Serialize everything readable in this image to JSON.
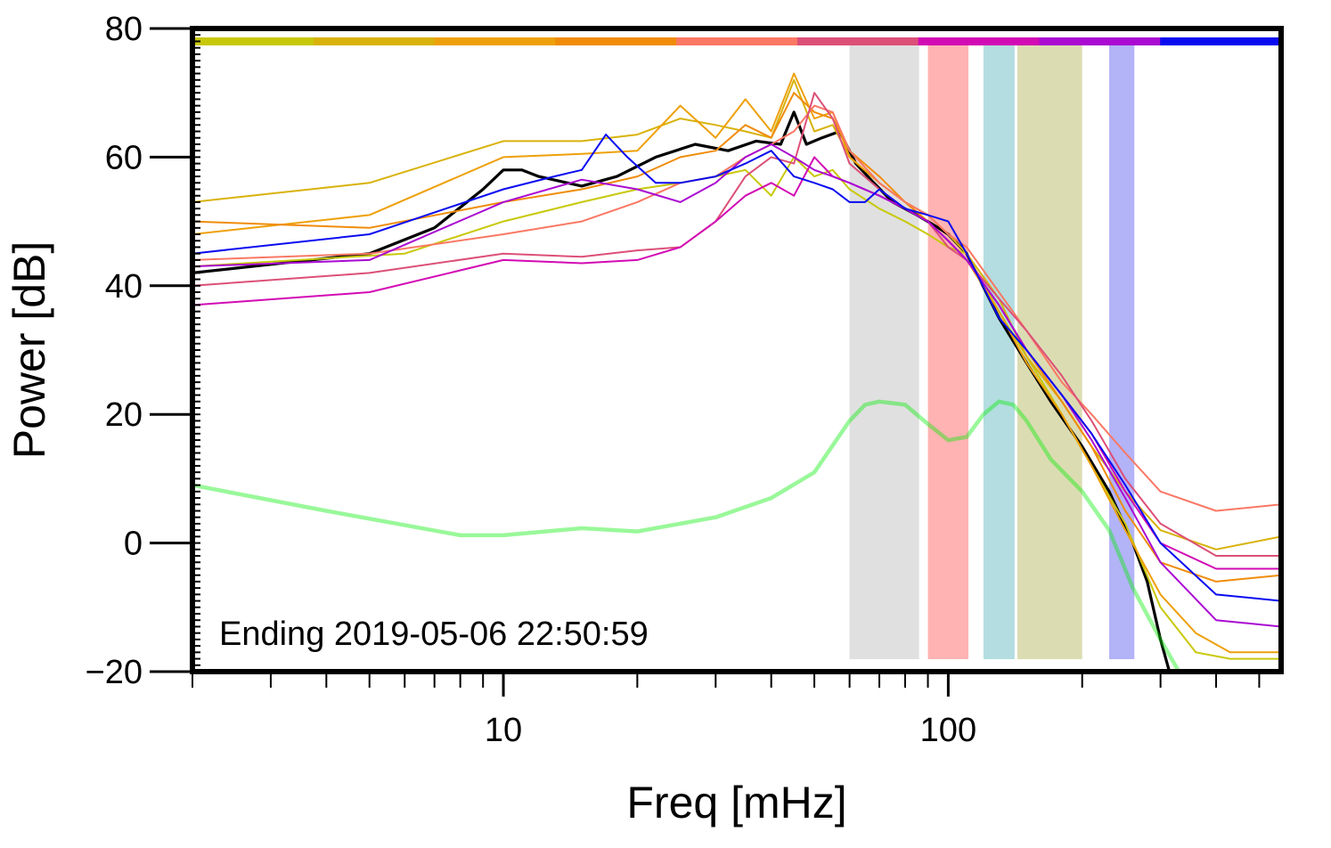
{
  "chart_data": {
    "type": "line",
    "xscale": "log",
    "xlabel": "Freq [mHz]",
    "ylabel": "Power [dB]",
    "xlim": [
      2,
      560
    ],
    "ylim": [
      -20,
      80
    ],
    "x_ticks": [
      10,
      100
    ],
    "x_tick_labels": [
      "10",
      "100"
    ],
    "y_ticks": [
      -20,
      0,
      20,
      40,
      60,
      80
    ],
    "y_tick_labels": [
      "−20",
      "0",
      "20",
      "40",
      "60",
      "80"
    ],
    "annotation": "Ending 2019-05-06 22:50:59",
    "grid": false,
    "bands": [
      {
        "x0": 60,
        "x1": 86,
        "color": "#e0e0e0"
      },
      {
        "x0": 90,
        "x1": 111,
        "color": "#ffb3b3"
      },
      {
        "x0": 120,
        "x1": 141,
        "color": "#b3dde0"
      },
      {
        "x0": 143,
        "x1": 200,
        "color": "#dcdcb3"
      },
      {
        "x0": 230,
        "x1": 262,
        "color": "#b3b3f8"
      }
    ],
    "top_strip_colors": [
      "#c8c80a",
      "#d8b20a",
      "#eea00a",
      "#f08c0a",
      "#fa7864",
      "#dc5078",
      "#d20ab4",
      "#aa0ad2",
      "#0a0af0"
    ],
    "series": [
      {
        "color": "#000000",
        "width": 3.2,
        "x": [
          2,
          5,
          7,
          9,
          10,
          11,
          12,
          15,
          18,
          22,
          27,
          32,
          37,
          42,
          45,
          48,
          52,
          57,
          62,
          68,
          75,
          85,
          95,
          100,
          110,
          130,
          150,
          170,
          200,
          230,
          260,
          280,
          300,
          320
        ],
        "y": [
          42,
          45,
          49,
          55,
          58,
          58,
          57,
          55.5,
          57,
          60,
          62,
          61,
          62.5,
          62,
          67,
          62,
          63,
          64,
          59,
          56,
          53,
          51,
          49,
          48,
          45,
          35,
          28,
          22,
          15,
          8,
          0,
          -6,
          -15,
          -22
        ]
      },
      {
        "color": "#00ee00",
        "width": 4.5,
        "opacity": 0.4,
        "x": [
          2,
          4,
          8,
          10,
          15,
          20,
          25,
          30,
          40,
          50,
          60,
          65,
          70,
          80,
          90,
          100,
          110,
          120,
          130,
          140,
          150,
          170,
          200,
          230,
          260,
          300,
          330
        ],
        "y": [
          9,
          5,
          1.2,
          1.2,
          2.3,
          1.8,
          3,
          4,
          7,
          11,
          19,
          21.5,
          22,
          21.5,
          18.5,
          16,
          16.5,
          20,
          22,
          21.5,
          19,
          13,
          8,
          2,
          -7,
          -15,
          -20
        ]
      },
      {
        "color": "#c8c80a",
        "width": 2,
        "x": [
          2,
          6,
          10,
          15,
          20,
          25,
          30,
          35,
          40,
          45,
          50,
          55,
          60,
          70,
          80,
          90,
          100,
          110,
          130,
          150,
          180,
          210,
          250,
          300,
          360,
          430,
          560
        ],
        "y": [
          43,
          45,
          50,
          53,
          55,
          56,
          57,
          58,
          54,
          60,
          57,
          58,
          55,
          52,
          50,
          48,
          46,
          45,
          36,
          29,
          20,
          12,
          3,
          -10,
          -17,
          -18,
          -18
        ]
      },
      {
        "color": "#d8b20a",
        "width": 2,
        "x": [
          2,
          5,
          10,
          15,
          20,
          25,
          30,
          35,
          40,
          45,
          50,
          55,
          60,
          70,
          80,
          90,
          100,
          110,
          130,
          150,
          180,
          210,
          250,
          300,
          400,
          560
        ],
        "y": [
          53,
          56,
          62.5,
          62.5,
          63.5,
          66,
          65,
          64,
          63,
          72,
          64,
          65,
          60,
          56,
          53,
          51,
          48,
          45,
          38,
          29,
          22,
          15,
          8,
          2,
          -1,
          1
        ]
      },
      {
        "color": "#eea00a",
        "width": 2,
        "x": [
          2,
          5,
          10,
          15,
          20,
          25,
          30,
          35,
          40,
          45,
          50,
          55,
          60,
          70,
          80,
          90,
          100,
          110,
          130,
          150,
          180,
          210,
          250,
          300,
          360,
          430,
          560
        ],
        "y": [
          48,
          51,
          60,
          60.5,
          61,
          68,
          63,
          69,
          64,
          73,
          66,
          67,
          60,
          56,
          53,
          50,
          47,
          44,
          36,
          28,
          20,
          12,
          2,
          -8,
          -14,
          -17,
          -17
        ]
      },
      {
        "color": "#f08c0a",
        "width": 2,
        "x": [
          2,
          5,
          10,
          15,
          20,
          25,
          30,
          35,
          40,
          45,
          50,
          55,
          60,
          70,
          80,
          90,
          100,
          110,
          130,
          150,
          180,
          210,
          250,
          300,
          400,
          560
        ],
        "y": [
          50,
          49,
          53,
          55,
          57,
          60,
          61,
          65,
          63,
          70,
          67,
          66,
          61,
          57,
          53,
          50,
          47,
          44,
          37,
          30,
          22,
          15,
          5,
          -3,
          -6,
          -5
        ]
      },
      {
        "color": "#fa7864",
        "width": 2,
        "x": [
          2,
          5,
          10,
          15,
          20,
          25,
          30,
          35,
          40,
          45,
          50,
          55,
          60,
          70,
          80,
          90,
          100,
          110,
          130,
          150,
          180,
          210,
          250,
          300,
          400,
          560
        ],
        "y": [
          44,
          45,
          48,
          50,
          53,
          56,
          57,
          60,
          62,
          64,
          68,
          67,
          61,
          56,
          53,
          51,
          48,
          46,
          39,
          33,
          25,
          20,
          14,
          8,
          5,
          6
        ]
      },
      {
        "color": "#dc5078",
        "width": 2,
        "x": [
          2,
          5,
          10,
          15,
          20,
          25,
          30,
          35,
          40,
          45,
          50,
          55,
          60,
          70,
          80,
          90,
          100,
          110,
          130,
          150,
          180,
          210,
          250,
          300,
          400,
          560
        ],
        "y": [
          40,
          42,
          45,
          44.5,
          45.5,
          46,
          50,
          57,
          60,
          59,
          70,
          66,
          59,
          55,
          52,
          50,
          46,
          44,
          38,
          33,
          26,
          19,
          10,
          3,
          -2,
          -2
        ]
      },
      {
        "color": "#d20ab4",
        "width": 2,
        "x": [
          2,
          5,
          10,
          15,
          20,
          25,
          30,
          35,
          40,
          45,
          50,
          55,
          60,
          70,
          80,
          90,
          100,
          110,
          130,
          150,
          180,
          210,
          250,
          300,
          400,
          560
        ],
        "y": [
          37,
          39,
          44,
          43.5,
          44,
          46,
          50,
          54,
          56,
          54,
          60,
          57,
          56,
          54,
          52,
          50,
          47,
          44,
          37,
          30,
          23,
          17,
          8,
          0,
          -4,
          -4
        ]
      },
      {
        "color": "#aa0ad2",
        "width": 2,
        "x": [
          2,
          5,
          10,
          15,
          20,
          25,
          30,
          35,
          40,
          45,
          50,
          55,
          60,
          70,
          80,
          90,
          100,
          110,
          130,
          150,
          180,
          210,
          250,
          300,
          400,
          560
        ],
        "y": [
          43,
          44,
          53,
          56.5,
          55,
          53,
          56,
          60,
          62,
          60,
          58,
          57,
          56,
          54,
          52,
          50,
          47,
          44,
          37,
          30,
          23,
          16,
          7,
          -3,
          -12,
          -13
        ]
      },
      {
        "color": "#0a0af0",
        "width": 2,
        "x": [
          2,
          5,
          10,
          13,
          15,
          17,
          19,
          22,
          25,
          30,
          35,
          40,
          45,
          50,
          55,
          60,
          65,
          70,
          80,
          90,
          100,
          110,
          130,
          150,
          180,
          210,
          250,
          300,
          400,
          560
        ],
        "y": [
          45,
          48,
          55,
          57,
          58,
          63.5,
          60,
          56,
          56,
          57,
          59,
          61,
          57,
          56,
          55,
          53,
          53,
          55,
          52,
          51,
          50,
          45,
          35,
          30,
          23,
          17,
          9,
          0,
          -8,
          -9
        ]
      }
    ]
  }
}
